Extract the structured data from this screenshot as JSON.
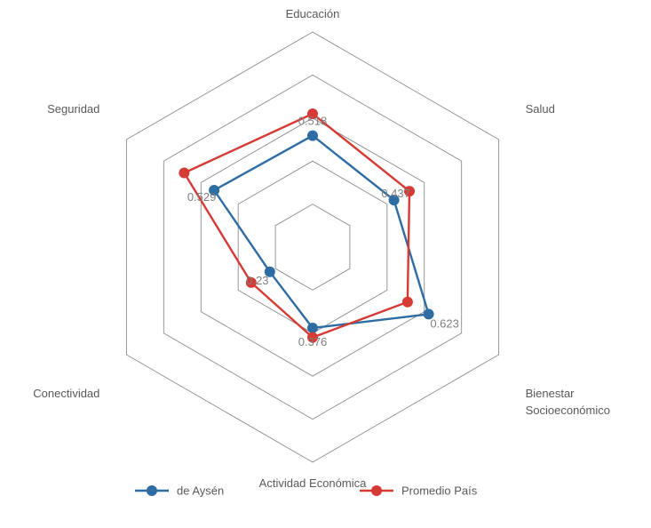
{
  "chart_data": {
    "type": "radar",
    "title": "",
    "categories": [
      "Educación",
      "Salud",
      "Bienestar Socioeconómico",
      "Actividad Económica",
      "Conectividad",
      "Seguridad"
    ],
    "category_lines": [
      [
        "Educación"
      ],
      [
        "Salud"
      ],
      [
        "Bienestar",
        "Socioeconómico"
      ],
      [
        "Actividad Económica"
      ],
      [
        "Conectividad"
      ],
      [
        "Seguridad"
      ]
    ],
    "rlim": [
      0,
      1
    ],
    "grid_rings": [
      0.2,
      0.4,
      0.6,
      0.8,
      1.0
    ],
    "series": [
      {
        "name": "de Aysén",
        "color": "#2e6ca4",
        "values": [
          0.518,
          0.437,
          0.623,
          0.376,
          0.23,
          0.529
        ]
      },
      {
        "name": "Promedio País",
        "color": "#d63a34",
        "values": [
          0.62,
          0.52,
          0.51,
          0.42,
          0.33,
          0.69
        ]
      }
    ],
    "data_labels": [
      {
        "text": "0.518",
        "category": 0
      },
      {
        "text": "0.437",
        "category": 1
      },
      {
        "text": "0.623",
        "category": 2
      },
      {
        "text": "0.376",
        "category": 3
      },
      {
        "text": "0.23",
        "category": 4
      },
      {
        "text": "0.529",
        "category": 5
      }
    ],
    "legend": {
      "position": "bottom"
    }
  }
}
